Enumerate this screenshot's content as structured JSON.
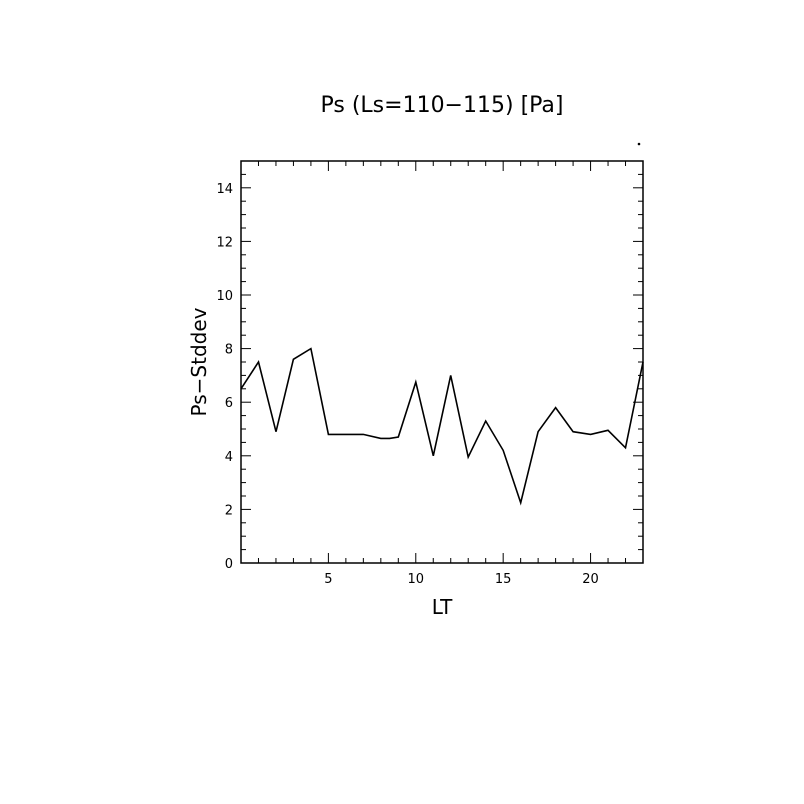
{
  "chart_data": {
    "type": "line",
    "title": "Ps (Ls=110−115) [Pa]",
    "xlabel": "LT",
    "ylabel": "Ps−Stddev",
    "xlim": [
      0,
      23
    ],
    "ylim": [
      0,
      15
    ],
    "x_ticks": [
      5,
      10,
      15,
      20
    ],
    "y_ticks": [
      0,
      2,
      4,
      6,
      8,
      10,
      12,
      14
    ],
    "grid": false,
    "legend": "none",
    "series": [
      {
        "x": [
          0,
          1,
          2,
          3,
          4,
          5,
          6,
          7,
          8,
          8.5,
          9,
          10,
          11,
          12,
          13,
          14,
          15,
          16,
          17,
          18,
          19,
          20,
          21,
          22,
          23
        ],
        "values": [
          6.5,
          7.5,
          4.9,
          7.6,
          8.0,
          4.8,
          4.8,
          4.8,
          4.65,
          4.65,
          4.7,
          6.75,
          4.0,
          7.0,
          3.95,
          5.3,
          4.2,
          2.25,
          4.9,
          5.8,
          4.9,
          4.8,
          4.95,
          4.3,
          7.5
        ]
      }
    ],
    "colors": {
      "line": "#000000",
      "axes": "#000000"
    }
  }
}
